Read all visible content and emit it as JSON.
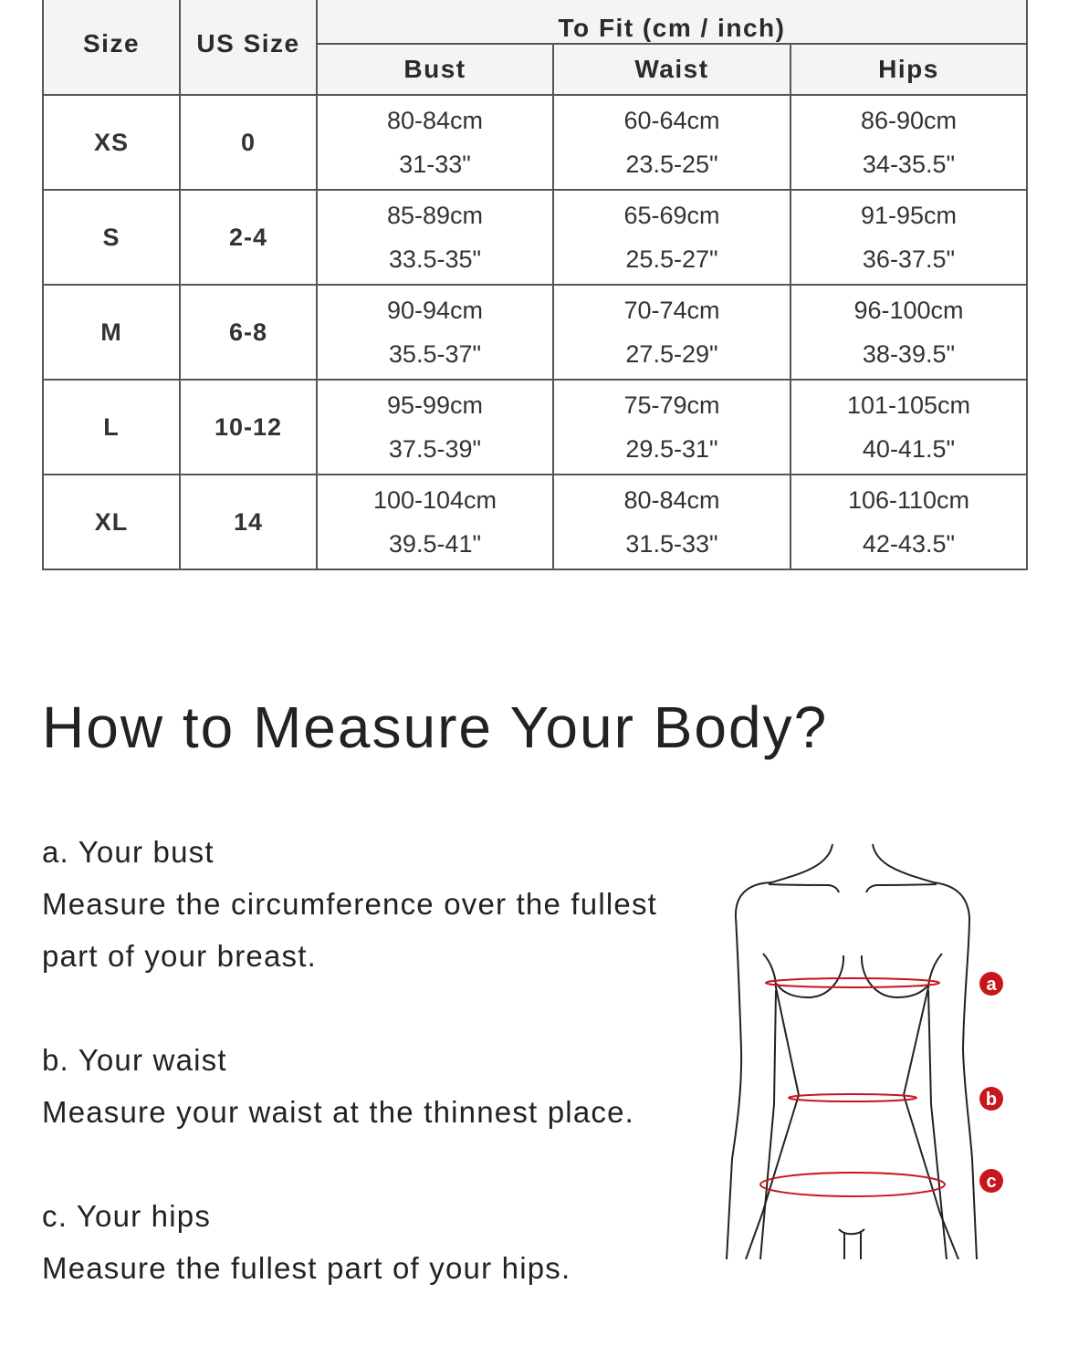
{
  "size_chart": {
    "headers": {
      "size": "Size",
      "us_size": "US Size",
      "to_fit": "To Fit (cm / inch)",
      "bust": "Bust",
      "waist": "Waist",
      "hips": "Hips"
    },
    "rows": [
      {
        "size": "XS",
        "us": "0",
        "bust_cm": "80-84cm",
        "bust_in": "31-33\"",
        "waist_cm": "60-64cm",
        "waist_in": "23.5-25\"",
        "hips_cm": "86-90cm",
        "hips_in": "34-35.5\""
      },
      {
        "size": "S",
        "us": "2-4",
        "bust_cm": "85-89cm",
        "bust_in": "33.5-35\"",
        "waist_cm": "65-69cm",
        "waist_in": "25.5-27\"",
        "hips_cm": "91-95cm",
        "hips_in": "36-37.5\""
      },
      {
        "size": "M",
        "us": "6-8",
        "bust_cm": "90-94cm",
        "bust_in": "35.5-37\"",
        "waist_cm": "70-74cm",
        "waist_in": "27.5-29\"",
        "hips_cm": "96-100cm",
        "hips_in": "38-39.5\""
      },
      {
        "size": "L",
        "us": "10-12",
        "bust_cm": "95-99cm",
        "bust_in": "37.5-39\"",
        "waist_cm": "75-79cm",
        "waist_in": "29.5-31\"",
        "hips_cm": "101-105cm",
        "hips_in": "40-41.5\""
      },
      {
        "size": "XL",
        "us": "14",
        "bust_cm": "100-104cm",
        "bust_in": "39.5-41\"",
        "waist_cm": "80-84cm",
        "waist_in": "31.5-33\"",
        "hips_cm": "106-110cm",
        "hips_in": "42-43.5\""
      }
    ]
  },
  "guide": {
    "title": "How to Measure Your Body?",
    "items": [
      {
        "label": "a. Your bust",
        "line1": "Measure the circumference over the fullest",
        "line2": "part of your breast."
      },
      {
        "label": "b. Your waist",
        "line1": "Measure your waist at the thinnest place."
      },
      {
        "label": "c. Your hips",
        "line1": "Measure the fullest part of your hips."
      }
    ]
  },
  "figure": {
    "markers": [
      "a",
      "b",
      "c"
    ],
    "accent_color": "#c8161d"
  }
}
